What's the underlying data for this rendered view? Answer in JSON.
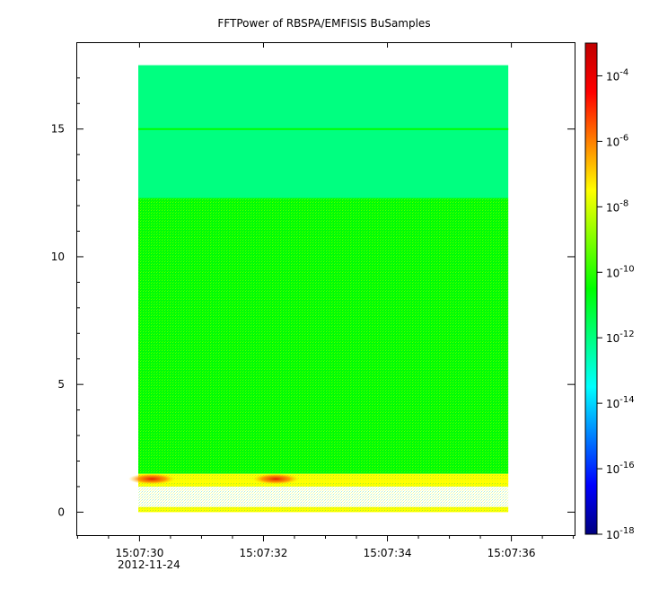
{
  "chart_data": {
    "type": "heatmap",
    "title": "FFTPower of RBSPA/EMFISIS  BuSamples",
    "xlabel": "",
    "ylabel": "",
    "x_tick_labels": [
      "15:07:30",
      "15:07:32",
      "15:07:34",
      "15:07:36"
    ],
    "x_date_label": "2012-11-24",
    "x_range": [
      "15:07:28.98",
      "15:07:37.02"
    ],
    "x_data_range": [
      "15:07:29.98",
      "15:07:35.95"
    ],
    "y_ticks": [
      0,
      5,
      10,
      15
    ],
    "ylim": [
      -0.9,
      18.4
    ],
    "y_data_range": [
      0,
      17.5
    ],
    "colorbar": {
      "scale": "log",
      "range": [
        1e-18,
        0.001
      ],
      "tick_bases": [
        "10",
        "10",
        "10",
        "10",
        "10",
        "10",
        "10",
        "10"
      ],
      "tick_exponents": [
        "-4",
        "-6",
        "-8",
        "-10",
        "-12",
        "-14",
        "-16",
        "-18"
      ],
      "tick_values": [
        0.0001,
        1e-06,
        1e-08,
        1e-10,
        1e-12,
        1e-14,
        1e-16,
        1e-18
      ],
      "colors": [
        "#00007f",
        "#0000ff",
        "#0080ff",
        "#00ffff",
        "#00ff80",
        "#00ff00",
        "#80ff00",
        "#ffff00",
        "#ff8000",
        "#ff0000",
        "#c00000"
      ]
    },
    "regions": [
      {
        "y_from": 12.3,
        "y_to": 17.5,
        "power": 1e-12
      },
      {
        "y_from": 1.5,
        "y_to": 12.3,
        "power": 1e-10
      },
      {
        "y_from": 1.0,
        "y_to": 1.5,
        "power": 1e-08
      },
      {
        "y_from": 0,
        "y_to": 0.2,
        "power": 1e-08
      }
    ],
    "line_features": [
      {
        "y": 15.0,
        "power": 1e-10
      },
      {
        "y": 1.2,
        "power": 1e-07
      }
    ],
    "bursts": [
      {
        "x": "15:07:30.2",
        "y": 1.3,
        "power": 1e-06
      },
      {
        "x": "15:07:32.2",
        "y": 1.3,
        "power": 1e-06
      }
    ]
  }
}
